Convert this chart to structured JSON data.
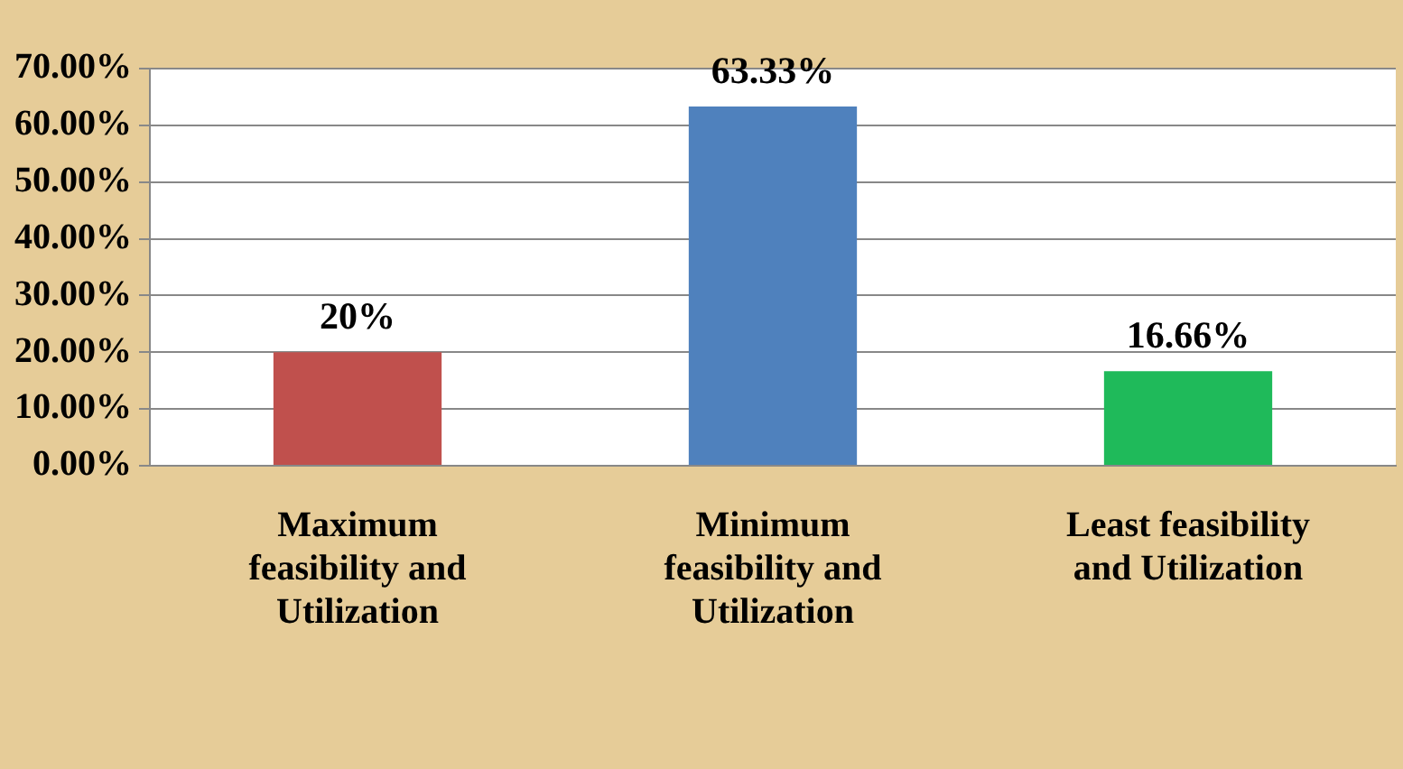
{
  "chart_data": {
    "type": "bar",
    "categories": [
      "Maximum feasibility and Utilization",
      "Minimum feasibility and Utilization",
      "Least   feasibility and Utilization"
    ],
    "values": [
      20,
      63.33,
      16.66
    ],
    "colors": [
      "#c0504d",
      "#4f81bd",
      "#1fba5a"
    ],
    "value_labels": [
      "20%",
      "63.33%",
      "16.66%"
    ],
    "ylim": [
      0,
      70
    ],
    "yticks": [
      {
        "value": 0,
        "label": "0.00%"
      },
      {
        "value": 10,
        "label": "10.00%"
      },
      {
        "value": 20,
        "label": "20.00%"
      },
      {
        "value": 30,
        "label": "30.00%"
      },
      {
        "value": 40,
        "label": "40.00%"
      },
      {
        "value": 50,
        "label": "50.00%"
      },
      {
        "value": 60,
        "label": "60.00%"
      },
      {
        "value": 70,
        "label": "70.00%"
      }
    ],
    "grid": "y"
  }
}
